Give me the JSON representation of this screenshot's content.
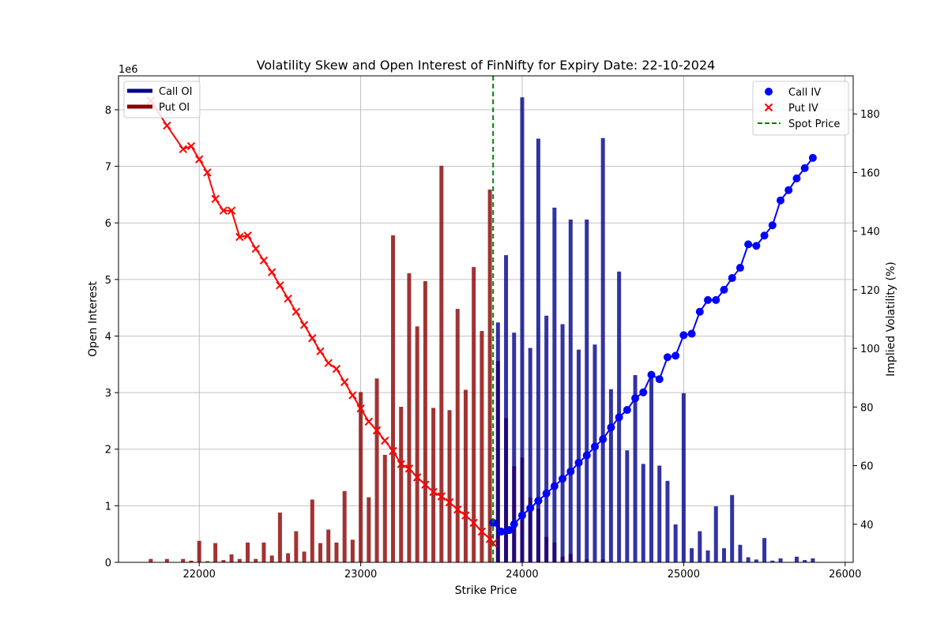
{
  "chart_data": {
    "type": "bar",
    "title": "Volatility Skew and Open Interest of FinNifty for Expiry Date: 22-10-2024",
    "xlabel": "Strike Price",
    "ylabel": "Open Interest",
    "y2label": "Implied Volatility (%)",
    "y_offset_label": "1e6",
    "xlim": [
      21500,
      26050
    ],
    "ylim": [
      0,
      8.6
    ],
    "y2lim": [
      27,
      193
    ],
    "x_ticks": [
      22000,
      23000,
      24000,
      25000,
      26000
    ],
    "y_ticks": [
      0,
      1,
      2,
      3,
      4,
      5,
      6,
      7,
      8
    ],
    "y2_ticks": [
      40,
      60,
      80,
      100,
      120,
      140,
      160,
      180
    ],
    "grid": true,
    "spot_price": 23820,
    "colors": {
      "call": "#00008B",
      "put": "#8B0000",
      "call_iv": "#0000FF",
      "put_iv": "#FF0000",
      "spot": "#008000"
    },
    "legend_left": {
      "position": "top-left",
      "entries": [
        {
          "label": "Call OI",
          "color": "#00008B"
        },
        {
          "label": "Put OI",
          "color": "#8B0000"
        }
      ]
    },
    "legend_right": {
      "position": "top-right",
      "entries": [
        {
          "label": "Call IV",
          "marker": "circle",
          "color": "#0000FF"
        },
        {
          "label": "Put IV",
          "marker": "x",
          "color": "#FF0000"
        },
        {
          "label": "Spot Price",
          "marker": "dashed-line",
          "color": "#008000"
        }
      ]
    },
    "put_oi": {
      "name": "Put OI",
      "x": [
        21700,
        21800,
        21900,
        21950,
        22000,
        22050,
        22100,
        22150,
        22200,
        22250,
        22300,
        22350,
        22400,
        22450,
        22500,
        22550,
        22600,
        22650,
        22700,
        22750,
        22800,
        22850,
        22900,
        22950,
        23000,
        23050,
        23100,
        23150,
        23200,
        23250,
        23300,
        23350,
        23400,
        23450,
        23500,
        23550,
        23600,
        23650,
        23700,
        23750,
        23800,
        23850,
        23900,
        23950,
        24000,
        24050,
        24100,
        24150,
        24200,
        24250,
        24300,
        24400,
        24500
      ],
      "y": [
        0.06,
        0.06,
        0.06,
        0.03,
        0.38,
        0.02,
        0.34,
        0.04,
        0.14,
        0.06,
        0.35,
        0.06,
        0.35,
        0.12,
        0.88,
        0.16,
        0.55,
        0.19,
        1.11,
        0.34,
        0.58,
        0.35,
        1.26,
        0.4,
        3.01,
        1.15,
        3.25,
        1.9,
        5.78,
        2.75,
        5.11,
        4.17,
        4.97,
        2.73,
        7.01,
        2.69,
        4.48,
        3.05,
        5.22,
        4.09,
        6.59,
        3.56,
        2.55,
        1.7,
        1.85,
        1.15,
        0.95,
        0.45,
        0.35,
        0.1,
        0.15,
        0.05,
        0.05
      ]
    },
    "call_oi": {
      "name": "Call OI",
      "x": [
        23850,
        23900,
        23950,
        24000,
        24050,
        24100,
        24150,
        24200,
        24250,
        24300,
        24350,
        24400,
        24450,
        24500,
        24550,
        24600,
        24650,
        24700,
        24750,
        24800,
        24850,
        24900,
        24950,
        25000,
        25050,
        25100,
        25150,
        25200,
        25250,
        25300,
        25350,
        25400,
        25450,
        25500,
        25550,
        25600,
        25700,
        25750,
        25800
      ],
      "y": [
        4.24,
        5.43,
        4.06,
        8.22,
        3.79,
        7.49,
        4.36,
        6.27,
        4.21,
        6.06,
        3.76,
        6.06,
        3.85,
        7.5,
        3.06,
        5.14,
        1.98,
        3.31,
        1.74,
        3.33,
        1.71,
        1.44,
        0.67,
        2.99,
        0.25,
        0.55,
        0.21,
        0.99,
        0.25,
        1.19,
        0.31,
        0.09,
        0.05,
        0.43,
        0.03,
        0.07,
        0.1,
        0.04,
        0.07
      ]
    },
    "put_iv": {
      "name": "Put IV",
      "x": [
        21700,
        21800,
        21900,
        21950,
        22000,
        22050,
        22100,
        22150,
        22200,
        22250,
        22300,
        22350,
        22400,
        22450,
        22500,
        22550,
        22600,
        22650,
        22700,
        22750,
        22800,
        22850,
        22900,
        22950,
        23000,
        23050,
        23100,
        23150,
        23200,
        23250,
        23300,
        23350,
        23400,
        23450,
        23500,
        23550,
        23600,
        23650,
        23700,
        23750,
        23800,
        23820
      ],
      "y": [
        184.5,
        176,
        168,
        169,
        164.5,
        160,
        151,
        147,
        147,
        138,
        138.5,
        134,
        130,
        126,
        121.5,
        117,
        112.5,
        108,
        103.5,
        99,
        95,
        93,
        88.5,
        84,
        79.5,
        75,
        72,
        68.5,
        65,
        60.5,
        59,
        56,
        53.5,
        51,
        49.5,
        47.5,
        45,
        43,
        40.5,
        37.5,
        35,
        33.5
      ]
    },
    "call_iv": {
      "name": "Call IV",
      "x": [
        23820,
        23870,
        23920,
        23950,
        24000,
        24050,
        24100,
        24150,
        24200,
        24250,
        24300,
        24350,
        24400,
        24450,
        24500,
        24550,
        24600,
        24650,
        24700,
        24750,
        24800,
        24850,
        24900,
        24950,
        25000,
        25050,
        25100,
        25150,
        25200,
        25250,
        25300,
        25350,
        25400,
        25450,
        25500,
        25550,
        25600,
        25650,
        25700,
        25750,
        25800
      ],
      "y": [
        40.5,
        37.5,
        38,
        40,
        43,
        45.5,
        48,
        50.5,
        53,
        55.5,
        58,
        61,
        63.5,
        66.5,
        69,
        73,
        76.5,
        79,
        83,
        85,
        91,
        89.5,
        97,
        97.5,
        104.5,
        105,
        112.5,
        116.5,
        116.5,
        120,
        124,
        127.5,
        135.5,
        135,
        138.5,
        142,
        150.5,
        154,
        158,
        161.5,
        165
      ]
    }
  }
}
